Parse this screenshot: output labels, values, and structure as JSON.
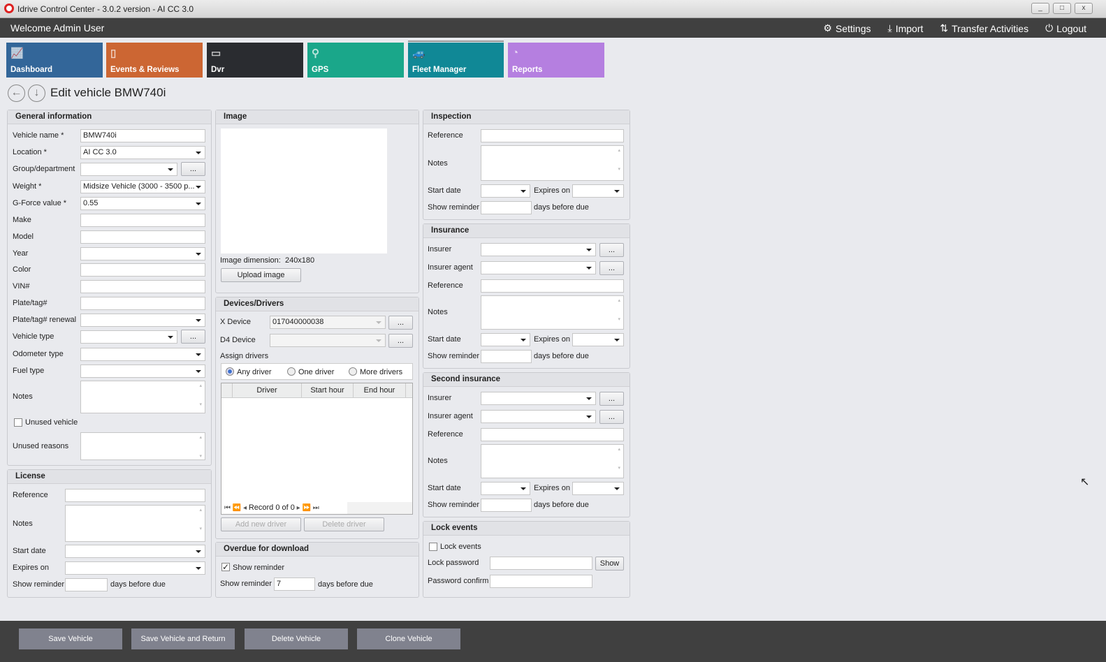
{
  "window": {
    "title": "Idrive Control Center - 3.0.2 version - AI CC 3.0",
    "controls": [
      "_",
      "□",
      "x"
    ]
  },
  "header": {
    "welcome": "Welcome Admin User",
    "links": [
      {
        "label": "Settings",
        "icon": "gears-icon"
      },
      {
        "label": "Import",
        "icon": "download-icon"
      },
      {
        "label": "Transfer Activities",
        "icon": "transfer-icon"
      },
      {
        "label": "Logout",
        "icon": "power-icon"
      }
    ]
  },
  "tiles": [
    {
      "label": "Dashboard",
      "color": "#336699",
      "icon": "chart-icon"
    },
    {
      "label": "Events & Reviews",
      "color": "#cc6633",
      "icon": "clipboard-icon"
    },
    {
      "label": "Dvr",
      "color": "#2a2c30",
      "icon": "dvr-icon"
    },
    {
      "label": "GPS",
      "color": "#1aa78a",
      "icon": "map-pin-icon"
    },
    {
      "label": "Fleet Manager",
      "color": "#108896",
      "icon": "cars-icon",
      "active": true
    },
    {
      "label": "Reports",
      "color": "#b57fe0",
      "icon": "pie-chart-icon"
    }
  ],
  "page": {
    "title": "Edit vehicle BMW740i"
  },
  "general": {
    "title": "General information",
    "vehicle_name": {
      "label": "Vehicle name *",
      "value": "BMW740i"
    },
    "location": {
      "label": "Location *",
      "value": "AI CC 3.0"
    },
    "group": {
      "label": "Group/department",
      "value": ""
    },
    "weight": {
      "label": "Weight *",
      "value": "Midsize Vehicle (3000 - 3500 p..."
    },
    "gforce": {
      "label": "G-Force value *",
      "value": "0.55"
    },
    "make": {
      "label": "Make"
    },
    "model": {
      "label": "Model"
    },
    "year": {
      "label": "Year"
    },
    "color": {
      "label": "Color"
    },
    "vin": {
      "label": "VIN#"
    },
    "plate": {
      "label": "Plate/tag#"
    },
    "plate_renewal": {
      "label": "Plate/tag# renewal"
    },
    "vehicle_type": {
      "label": "Vehicle type"
    },
    "odometer": {
      "label": "Odometer type"
    },
    "fuel": {
      "label": "Fuel type"
    },
    "notes": {
      "label": "Notes"
    },
    "unused": {
      "label": "Unused vehicle",
      "checked": false
    },
    "unused_reasons": {
      "label": "Unused reasons"
    },
    "ellipsis": "..."
  },
  "license": {
    "title": "License",
    "reference": "Reference",
    "notes": "Notes",
    "start_date": "Start date",
    "expires_on": "Expires on",
    "show_reminder": "Show reminder",
    "days_before_due": "days before due"
  },
  "image": {
    "title": "Image",
    "dimension_label": "Image dimension:",
    "dimension": "240x180",
    "upload": "Upload image"
  },
  "devices": {
    "title": "Devices/Drivers",
    "x_device": {
      "label": "X Device",
      "value": "017040000038"
    },
    "d4_device": {
      "label": "D4 Device",
      "value": ""
    },
    "assign_label": "Assign drivers",
    "options": [
      "Any driver",
      "One driver",
      "More drivers"
    ],
    "selected": "Any driver",
    "columns": [
      "Driver",
      "Start hour",
      "End hour"
    ],
    "record": "Record 0 of 0",
    "add": "Add new driver",
    "delete": "Delete driver"
  },
  "overdue": {
    "title": "Overdue for download",
    "show_reminder_check": "Show reminder",
    "checked": true,
    "show_reminder": "Show reminder",
    "value": "7",
    "days_before_due": "days before due"
  },
  "inspection": {
    "title": "Inspection",
    "reference": "Reference",
    "notes": "Notes",
    "start_date": "Start date",
    "expires_on": "Expires on",
    "show_reminder": "Show reminder",
    "days_before_due": "days before due"
  },
  "insurance": {
    "title": "Insurance",
    "insurer": "Insurer",
    "agent": "Insurer agent",
    "reference": "Reference",
    "notes": "Notes",
    "start_date": "Start date",
    "expires_on": "Expires on",
    "show_reminder": "Show reminder",
    "days_before_due": "days before due"
  },
  "second_insurance": {
    "title": "Second insurance",
    "insurer": "Insurer",
    "agent": "Insurer agent",
    "reference": "Reference",
    "notes": "Notes",
    "start_date": "Start date",
    "expires_on": "Expires on",
    "show_reminder": "Show reminder",
    "days_before_due": "days before due"
  },
  "lock": {
    "title": "Lock events",
    "lock_events": "Lock events",
    "checked": false,
    "password": "Lock password",
    "show": "Show",
    "confirm": "Password confirm"
  },
  "footer": {
    "save": "Save Vehicle",
    "save_return": "Save Vehicle and Return",
    "delete": "Delete Vehicle",
    "clone": "Clone Vehicle"
  }
}
